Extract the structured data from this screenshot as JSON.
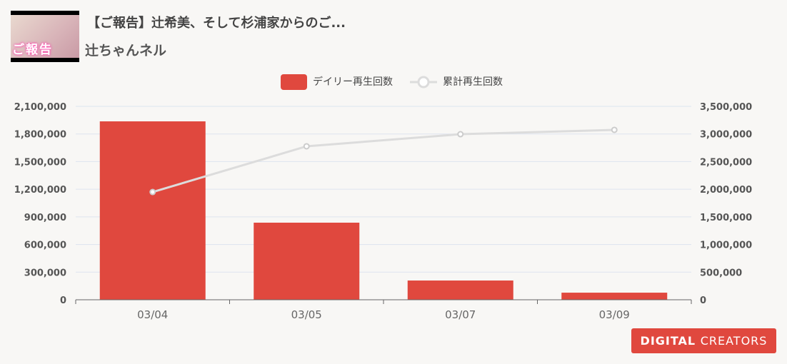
{
  "header": {
    "title": "【ご報告】辻希美、そして杉浦家からのご...",
    "channel": "辻ちゃんネル",
    "thumbnail_text": "ご報告"
  },
  "logo": {
    "part1": "DIGITAL",
    "part2": "CREATORS"
  },
  "colors": {
    "bar": "#e0483e",
    "line": "#dcdcdc",
    "grid": "#dde4ef"
  },
  "chart_data": {
    "type": "bar+line",
    "categories": [
      "03/04",
      "03/05",
      "03/07",
      "03/09"
    ],
    "legend_position": "top",
    "grid": true,
    "series": [
      {
        "name": "デイリー再生回数",
        "type": "bar",
        "axis": "left",
        "values": [
          1937000,
          837000,
          209000,
          77000
        ]
      },
      {
        "name": "累計再生回数",
        "type": "line",
        "axis": "right",
        "values": [
          1950000,
          2777000,
          2996000,
          3074000
        ]
      }
    ],
    "y_left": {
      "range": [
        0,
        2100000
      ],
      "ticks": [
        "0",
        "300,000",
        "600,000",
        "900,000",
        "1,200,000",
        "1,500,000",
        "1,800,000",
        "2,100,000"
      ]
    },
    "y_right": {
      "range": [
        0,
        3500000
      ],
      "ticks": [
        "0",
        "500,000",
        "1,000,000",
        "1,500,000",
        "2,000,000",
        "2,500,000",
        "3,000,000",
        "3,500,000"
      ]
    }
  }
}
